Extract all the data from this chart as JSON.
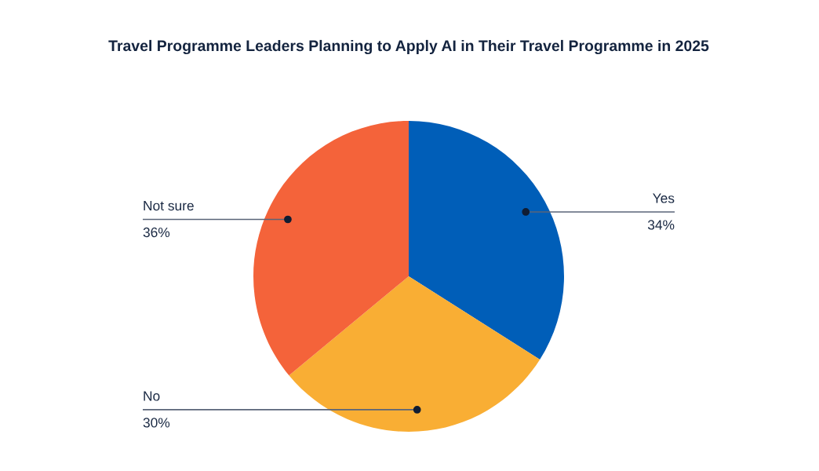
{
  "chart_data": {
    "type": "pie",
    "title": "Travel Programme Leaders Planning to Apply AI in Their Travel Programme in 2025",
    "categories": [
      "Yes",
      "No",
      "Not sure"
    ],
    "values": [
      34,
      30,
      36
    ],
    "colors": [
      "#005eb8",
      "#f9ae34",
      "#f4633a"
    ],
    "value_labels": [
      "34%",
      "30%",
      "36%"
    ],
    "legend": false
  }
}
